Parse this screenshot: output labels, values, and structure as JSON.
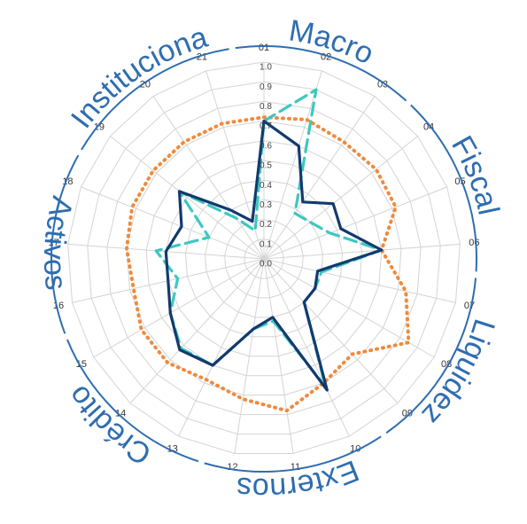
{
  "chart_data": {
    "type": "radar",
    "categories": [
      "01",
      "02",
      "03",
      "04",
      "05",
      "06",
      "07",
      "08",
      "09",
      "10",
      "11",
      "12",
      "13",
      "14",
      "15",
      "16",
      "17",
      "18",
      "19",
      "20",
      "21"
    ],
    "rlim": [
      0,
      1
    ],
    "rticks": [
      {
        "value": 0,
        "label": "0.0"
      },
      0.1,
      0.2,
      0.3,
      0.4,
      0.5,
      0.6,
      0.7,
      0.8,
      0.9,
      {
        "value": 1,
        "label": "1.0"
      }
    ],
    "grid": true,
    "series": [
      {
        "color": "#f08a3c",
        "style": "dotted",
        "values": [
          0.72,
          0.74,
          0.72,
          0.73,
          0.72,
          0.6,
          0.74,
          0.85,
          0.66,
          0.7,
          0.78,
          0.72,
          0.68,
          0.72,
          0.72,
          0.68,
          0.7,
          0.72,
          0.72,
          0.72,
          0.72
        ]
      },
      {
        "color": "#3cc8c0",
        "style": "dashed",
        "values": [
          0.7,
          0.9,
          0.28,
          0.3,
          0.36,
          0.6,
          0.3,
          0.3,
          0.3,
          0.72,
          0.32,
          0.36,
          0.6,
          0.62,
          0.55,
          0.45,
          0.55,
          0.3,
          0.55,
          0.25,
          0.15
        ]
      },
      {
        "color": "#123a6e",
        "style": "solid",
        "values": [
          0.7,
          0.6,
          0.35,
          0.45,
          0.42,
          0.6,
          0.28,
          0.3,
          0.3,
          0.74,
          0.3,
          0.36,
          0.6,
          0.63,
          0.55,
          0.5,
          0.5,
          0.45,
          0.55,
          0.3,
          0.2
        ]
      }
    ],
    "groups": [
      {
        "label": "Macro",
        "categories": [
          "01",
          "02",
          "03"
        ]
      },
      {
        "label": "Fiscal",
        "categories": [
          "04",
          "05",
          "06"
        ]
      },
      {
        "label": "Liquidez",
        "categories": [
          "07",
          "08",
          "09"
        ]
      },
      {
        "label": "Externos",
        "categories": [
          "10",
          "11",
          "12"
        ]
      },
      {
        "label": "Crédito",
        "categories": [
          "13",
          "14",
          "15"
        ]
      },
      {
        "label": "Activos",
        "categories": [
          "16",
          "17",
          "18"
        ]
      },
      {
        "label": "Instituciona",
        "categories": [
          "19",
          "20",
          "21"
        ]
      }
    ]
  }
}
